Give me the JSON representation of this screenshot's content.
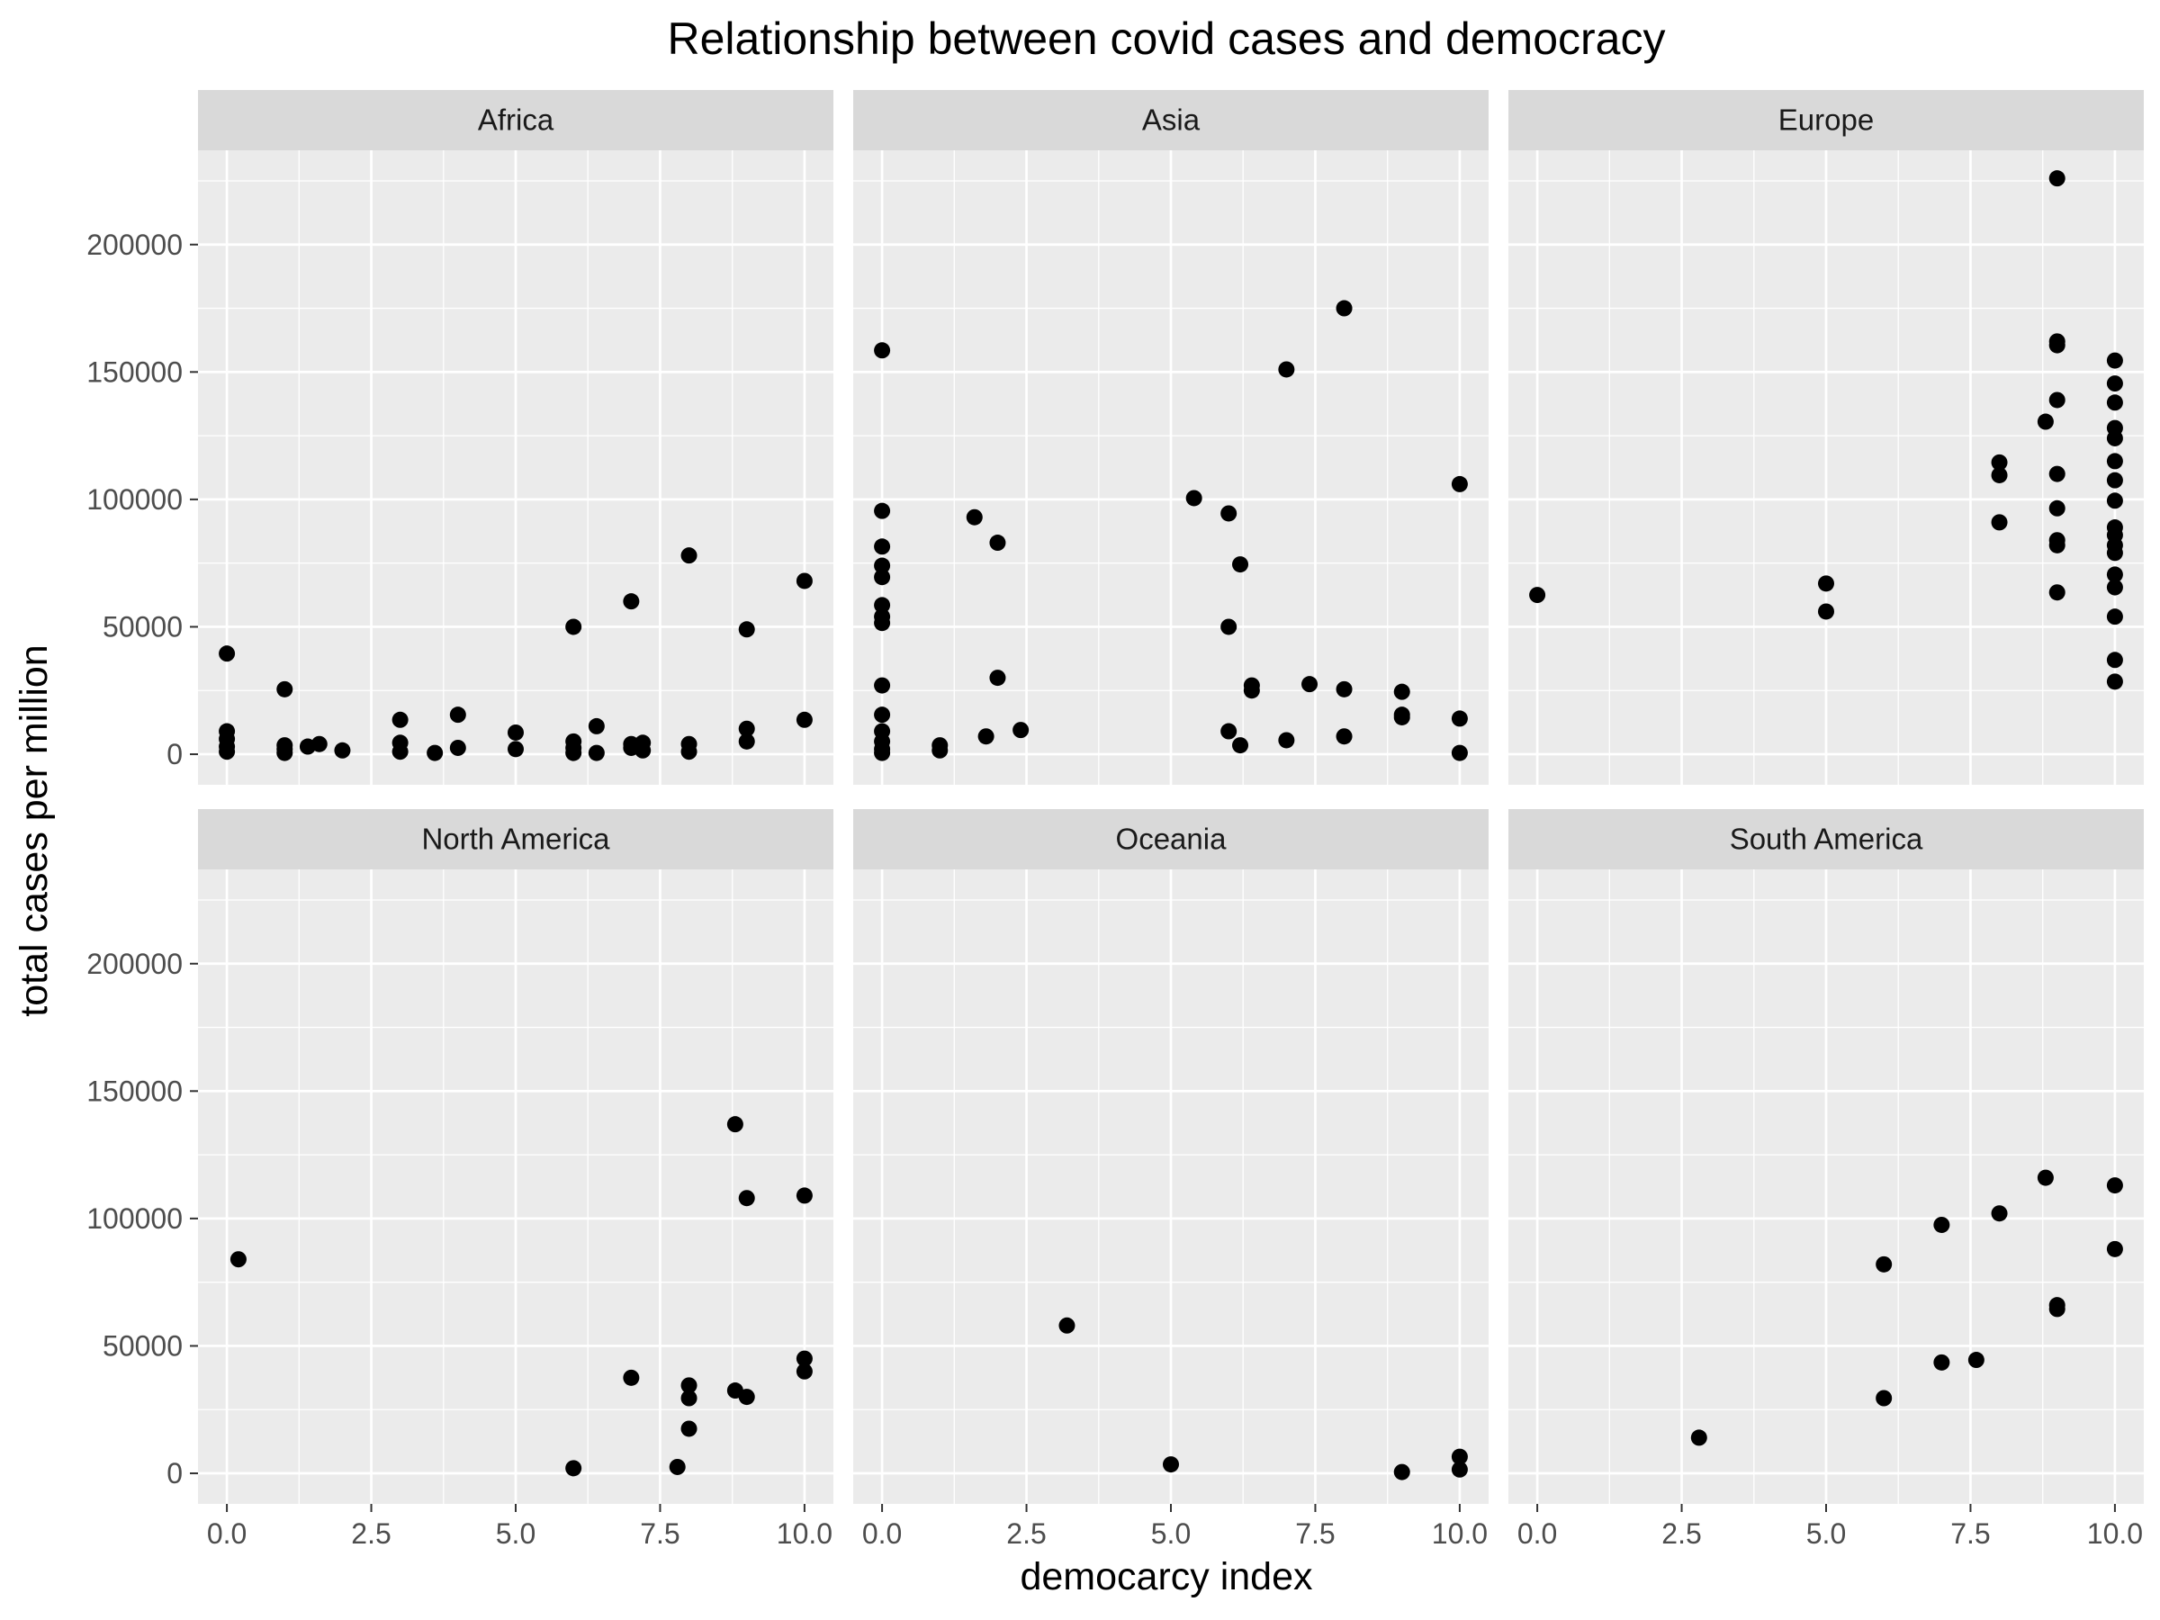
{
  "chart_data": {
    "type": "scatter",
    "title": "Relationship between covid cases and democracy",
    "xlabel": "democarcy index",
    "ylabel": "total cases per million",
    "xlim": [
      -0.5,
      10.5
    ],
    "ylim": [
      -12000,
      237000
    ],
    "x_ticks": [
      0,
      2.5,
      5,
      7.5,
      10
    ],
    "x_tick_labels": [
      "0.0",
      "2.5",
      "5.0",
      "7.5",
      "10.0"
    ],
    "y_ticks": [
      0,
      50000,
      100000,
      150000,
      200000
    ],
    "y_tick_labels": [
      "0",
      "50000",
      "100000",
      "150000",
      "200000"
    ],
    "grid": true,
    "facets": [
      "Africa",
      "Asia",
      "Europe",
      "North America",
      "Oceania",
      "South America"
    ],
    "colors": {
      "panel_bg": "#ebebeb",
      "grid_major": "#ffffff",
      "strip_bg": "#d9d9d9",
      "point": "#000000"
    },
    "panels": [
      {
        "name": "Africa",
        "points": [
          [
            0,
            39500
          ],
          [
            0,
            9000
          ],
          [
            0,
            6000
          ],
          [
            0,
            3000
          ],
          [
            0,
            1000
          ],
          [
            1,
            25500
          ],
          [
            1,
            3500
          ],
          [
            1,
            2000
          ],
          [
            1,
            500
          ],
          [
            1.4,
            3000
          ],
          [
            1.6,
            4000
          ],
          [
            2,
            1500
          ],
          [
            3,
            13500
          ],
          [
            3,
            4500
          ],
          [
            3,
            1000
          ],
          [
            3.6,
            500
          ],
          [
            4,
            15500
          ],
          [
            4,
            2500
          ],
          [
            5,
            8500
          ],
          [
            5,
            2000
          ],
          [
            6,
            50000
          ],
          [
            6,
            5000
          ],
          [
            6,
            2500
          ],
          [
            6,
            500
          ],
          [
            6.4,
            11000
          ],
          [
            6.4,
            500
          ],
          [
            7,
            60000
          ],
          [
            7,
            4000
          ],
          [
            7,
            2500
          ],
          [
            7.2,
            4500
          ],
          [
            7.2,
            1500
          ],
          [
            8,
            78000
          ],
          [
            8,
            4000
          ],
          [
            8,
            1000
          ],
          [
            9,
            49000
          ],
          [
            9,
            10000
          ],
          [
            9,
            5000
          ],
          [
            10,
            68000
          ],
          [
            10,
            13500
          ]
        ]
      },
      {
        "name": "Asia",
        "points": [
          [
            0,
            158500
          ],
          [
            0,
            95500
          ],
          [
            0,
            81500
          ],
          [
            0,
            74000
          ],
          [
            0,
            69500
          ],
          [
            0,
            58500
          ],
          [
            0,
            54000
          ],
          [
            0,
            51500
          ],
          [
            0,
            27000
          ],
          [
            0,
            15500
          ],
          [
            0,
            9000
          ],
          [
            0,
            5000
          ],
          [
            0,
            2000
          ],
          [
            0,
            500
          ],
          [
            1,
            3500
          ],
          [
            1,
            1500
          ],
          [
            1.6,
            93000
          ],
          [
            1.8,
            7000
          ],
          [
            2,
            83000
          ],
          [
            2,
            30000
          ],
          [
            2.4,
            9500
          ],
          [
            5.4,
            100500
          ],
          [
            6,
            94500
          ],
          [
            6,
            50000
          ],
          [
            6,
            9000
          ],
          [
            6.2,
            74500
          ],
          [
            6.2,
            3500
          ],
          [
            6.4,
            27000
          ],
          [
            6.4,
            25000
          ],
          [
            7,
            151000
          ],
          [
            7,
            5500
          ],
          [
            7.4,
            27500
          ],
          [
            8,
            175000
          ],
          [
            8,
            25500
          ],
          [
            8,
            7000
          ],
          [
            9,
            24500
          ],
          [
            9,
            15500
          ],
          [
            9,
            14500
          ],
          [
            10,
            106000
          ],
          [
            10,
            14000
          ],
          [
            10,
            500
          ]
        ]
      },
      {
        "name": "Europe",
        "points": [
          [
            0,
            62500
          ],
          [
            5,
            67000
          ],
          [
            5,
            56000
          ],
          [
            8,
            114500
          ],
          [
            8,
            109500
          ],
          [
            8,
            91000
          ],
          [
            8.8,
            130500
          ],
          [
            9,
            226000
          ],
          [
            9,
            162000
          ],
          [
            9,
            160500
          ],
          [
            9,
            139000
          ],
          [
            9,
            110000
          ],
          [
            9,
            96500
          ],
          [
            9,
            84000
          ],
          [
            9,
            82000
          ],
          [
            9,
            63500
          ],
          [
            10,
            154500
          ],
          [
            10,
            145500
          ],
          [
            10,
            138000
          ],
          [
            10,
            128000
          ],
          [
            10,
            124000
          ],
          [
            10,
            115000
          ],
          [
            10,
            107500
          ],
          [
            10,
            99500
          ],
          [
            10,
            89000
          ],
          [
            10,
            86000
          ],
          [
            10,
            82000
          ],
          [
            10,
            79000
          ],
          [
            10,
            70500
          ],
          [
            10,
            65500
          ],
          [
            10,
            54000
          ],
          [
            10,
            37000
          ],
          [
            10,
            28500
          ]
        ]
      },
      {
        "name": "North America",
        "points": [
          [
            0.2,
            84000
          ],
          [
            6,
            2000
          ],
          [
            7,
            37500
          ],
          [
            7.8,
            2500
          ],
          [
            8,
            34500
          ],
          [
            8,
            29500
          ],
          [
            8,
            17500
          ],
          [
            8.8,
            137000
          ],
          [
            8.8,
            32500
          ],
          [
            9,
            108000
          ],
          [
            9,
            30000
          ],
          [
            10,
            109000
          ],
          [
            10,
            45000
          ],
          [
            10,
            40000
          ]
        ]
      },
      {
        "name": "Oceania",
        "points": [
          [
            3.2,
            58000
          ],
          [
            5,
            3500
          ],
          [
            9,
            500
          ],
          [
            10,
            6500
          ],
          [
            10,
            1500
          ]
        ]
      },
      {
        "name": "South America",
        "points": [
          [
            2.8,
            14000
          ],
          [
            6,
            82000
          ],
          [
            6,
            29500
          ],
          [
            7,
            97500
          ],
          [
            7,
            43500
          ],
          [
            7.6,
            44500
          ],
          [
            8,
            102000
          ],
          [
            8.8,
            116000
          ],
          [
            9,
            66000
          ],
          [
            9,
            64500
          ],
          [
            10,
            113000
          ],
          [
            10,
            88000
          ]
        ]
      }
    ]
  }
}
